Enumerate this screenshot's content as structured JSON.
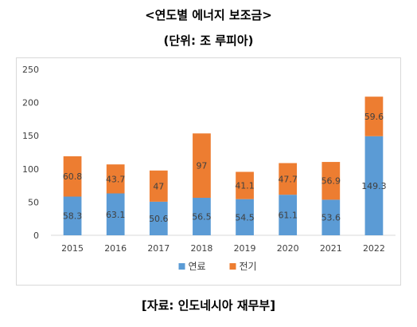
{
  "title": "<연도별 에너지 보조금>",
  "subtitle": "(단위: 조 루피아)",
  "source": "[자료: 인도네시아 재무부]",
  "chart_data": {
    "type": "bar",
    "stacked": true,
    "categories": [
      "2015",
      "2016",
      "2017",
      "2018",
      "2019",
      "2020",
      "2021",
      "2022"
    ],
    "series": [
      {
        "name": "연료",
        "color": "#5b9bd5",
        "values": [
          58.3,
          63.1,
          50.6,
          56.5,
          54.5,
          61.1,
          53.6,
          149.3
        ]
      },
      {
        "name": "전기",
        "color": "#ed7d31",
        "values": [
          60.8,
          43.7,
          47,
          97,
          41.1,
          47.7,
          56.9,
          59.6
        ]
      }
    ],
    "ylim": [
      0,
      250
    ],
    "yticks": [
      0,
      50,
      100,
      150,
      200,
      250
    ],
    "legend": "bottom",
    "grid": false,
    "xlabel": "",
    "ylabel": ""
  }
}
